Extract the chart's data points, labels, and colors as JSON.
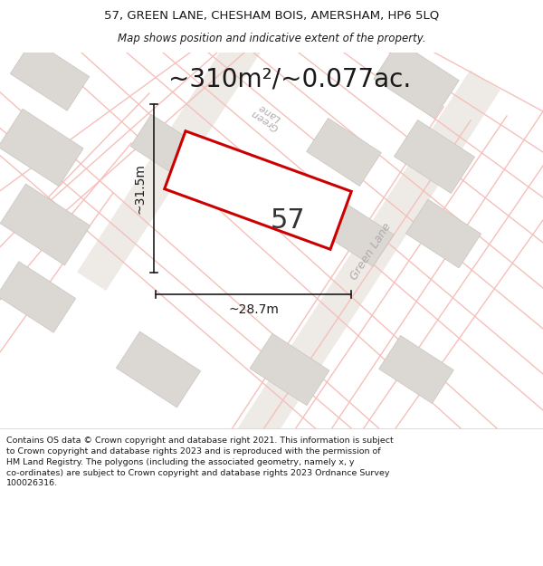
{
  "title_line1": "57, GREEN LANE, CHESHAM BOIS, AMERSHAM, HP6 5LQ",
  "title_line2": "Map shows position and indicative extent of the property.",
  "area_text": "~310m²/~0.077ac.",
  "property_number": "57",
  "dim_width": "~28.7m",
  "dim_height": "~31.5m",
  "road_label1": "Green­Lane",
  "road_label2": "Green Lane",
  "footer_text": "Contains OS data © Crown copyright and database right 2021. This information is subject to Crown copyright and database rights 2023 and is reproduced with the permission of HM Land Registry. The polygons (including the associated geometry, namely x, y co-ordinates) are subject to Crown copyright and database rights 2023 Ordnance Survey 100026316.",
  "map_bg_color": "#f7f4f1",
  "property_fill": "#ffffff",
  "property_stroke": "#cc0000",
  "building_fill": "#dbd7d2",
  "building_stroke": "#c8c4bf",
  "road_line_color": "#f5c0bb",
  "road_text_color": "#b0aaaa",
  "dim_line_color": "#1a1a1a",
  "title_color": "#1a1a1a",
  "footer_color": "#1a1a1a",
  "road_band_fill": "#eeeae6",
  "title_fontsize": 9.5,
  "subtitle_fontsize": 8.5,
  "area_fontsize": 20,
  "prop_num_fontsize": 22,
  "dim_fontsize": 10,
  "road_fontsize": 9,
  "footer_fontsize": 6.8
}
